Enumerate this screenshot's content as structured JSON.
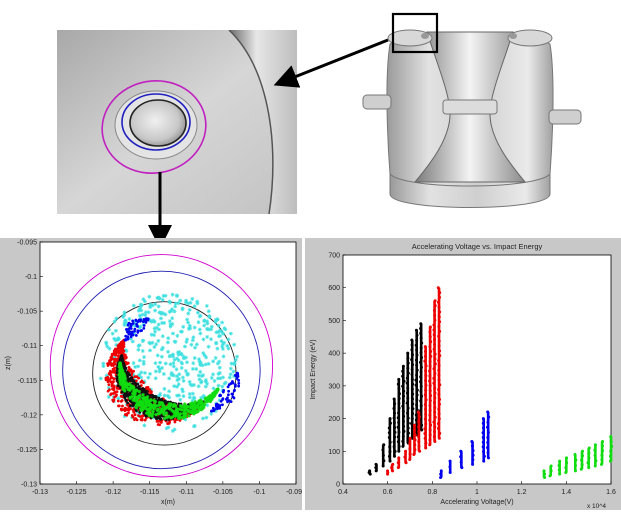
{
  "chart_data": [
    {
      "type": "scatter",
      "title": "",
      "xlabel": "x(m)",
      "ylabel": "z(m)",
      "xlim": [
        -0.13,
        -0.095
      ],
      "ylim": [
        -0.13,
        -0.095
      ],
      "x_ticks": [
        "-0.13",
        "-0.125",
        "-0.12",
        "-0.115",
        "-0.11",
        "-0.105",
        "-0.1",
        "-0.095"
      ],
      "y_ticks": [
        "-0.095",
        "-0.1",
        "-0.105",
        "-0.11",
        "-0.115",
        "-0.12",
        "-0.125",
        "-0.13"
      ],
      "circles": [
        {
          "color": "#d000d0",
          "center": [
            -0.1134,
            -0.1129
          ],
          "radius": 0.0152
        },
        {
          "color": "#1f1fb0",
          "center": [
            -0.1134,
            -0.1135
          ],
          "radius": 0.0135
        },
        {
          "color": "#202020",
          "center": [
            -0.113,
            -0.114
          ],
          "radius": 0.0098
        }
      ],
      "series": [
        {
          "color": "#40e0e0",
          "marker": "star",
          "region": "disk",
          "center": [
            -0.1125,
            -0.1125
          ],
          "radius": 0.0095
        },
        {
          "color": "#ee0000",
          "marker": "dot",
          "region": "crescent-outer"
        },
        {
          "color": "#101010",
          "marker": "dot",
          "region": "crescent-inner"
        },
        {
          "color": "#10dd10",
          "marker": "star",
          "region": "crescent-core"
        },
        {
          "color": "#0000ee",
          "marker": "dot",
          "region": "crescent-edge"
        }
      ],
      "grid": false
    },
    {
      "type": "scatter",
      "title": "Accelerating Voltage vs. Impact Energy",
      "xlabel": "Accelerating Voltage(V)",
      "ylabel": "Impact Energy (eV)",
      "x_multiplier": "x 10^4",
      "xlim": [
        0.4,
        1.6
      ],
      "ylim": [
        0,
        700
      ],
      "x_ticks": [
        "0.4",
        "0.6",
        "0.8",
        "1",
        "1.2",
        "1.4",
        "1.6"
      ],
      "y_ticks": [
        "0",
        "100",
        "200",
        "300",
        "400",
        "500",
        "600",
        "700"
      ],
      "grid": false,
      "series": [
        {
          "color": "#000000",
          "x": [
            0.52,
            0.55,
            0.58,
            0.61,
            0.63,
            0.65,
            0.67,
            0.69,
            0.71,
            0.73,
            0.75
          ],
          "y_min": [
            30,
            40,
            55,
            70,
            85,
            100,
            115,
            125,
            140,
            150,
            165
          ],
          "y_max": [
            40,
            60,
            120,
            200,
            260,
            320,
            360,
            400,
            440,
            470,
            490
          ]
        },
        {
          "color": "#ee0000",
          "x": [
            0.6,
            0.62,
            0.65,
            0.68,
            0.7,
            0.72,
            0.74,
            0.77,
            0.79,
            0.81,
            0.83
          ],
          "y_min": [
            30,
            40,
            50,
            65,
            75,
            90,
            100,
            110,
            120,
            130,
            140
          ],
          "y_max": [
            40,
            60,
            80,
            100,
            140,
            180,
            220,
            420,
            480,
            560,
            600
          ]
        },
        {
          "color": "#0000ee",
          "x": [
            0.84,
            0.88,
            0.93,
            0.98,
            1.03,
            1.05
          ],
          "y_min": [
            20,
            35,
            50,
            60,
            70,
            80
          ],
          "y_max": [
            40,
            70,
            100,
            130,
            200,
            220
          ]
        },
        {
          "color": "#10dd10",
          "x": [
            1.3,
            1.33,
            1.37,
            1.4,
            1.44,
            1.47,
            1.5,
            1.53,
            1.56,
            1.6
          ],
          "y_min": [
            20,
            25,
            30,
            35,
            40,
            45,
            50,
            55,
            60,
            70
          ],
          "y_max": [
            40,
            55,
            70,
            80,
            90,
            100,
            110,
            120,
            130,
            145
          ]
        }
      ]
    }
  ],
  "images": {
    "top_left": "closeup-of-opening-with-contour-rings",
    "top_right": "3d-model-of-cylindrical-structure",
    "arrow_color": "#000000",
    "inset_box_color": "#000000"
  }
}
